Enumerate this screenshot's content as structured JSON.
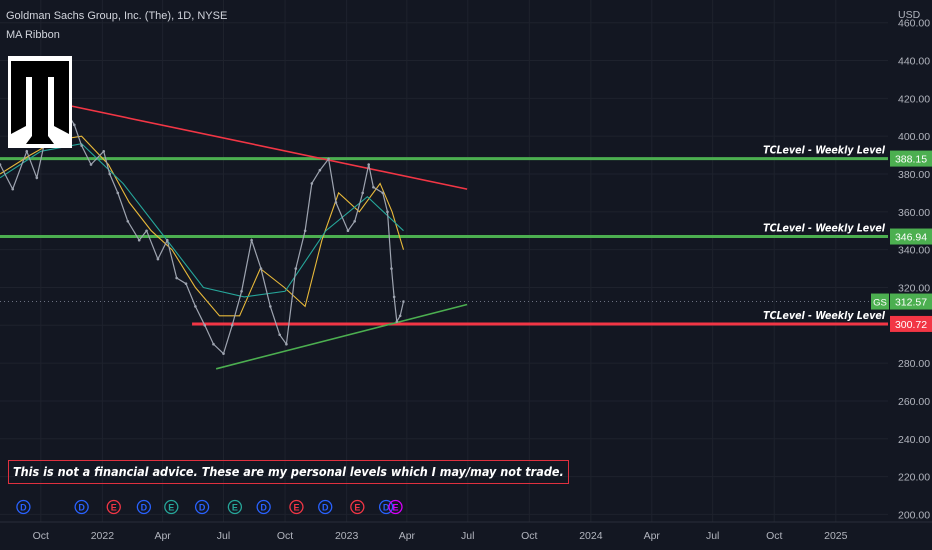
{
  "header": {
    "title": "Goldman Sachs Group, Inc. (The), 1D, NYSE",
    "indicator": "MA Ribbon"
  },
  "disclaimer": "This is not a financial advice. These are my personal levels which I may/may not trade.",
  "chart_data": {
    "type": "line",
    "symbol": "GS",
    "currency": "USD",
    "ylim": [
      196,
      472
    ],
    "y_ticks": [
      "460.00",
      "440.00",
      "420.00",
      "400.00",
      "380.00",
      "360.00",
      "340.00",
      "320.00",
      "300.00",
      "280.00",
      "260.00",
      "240.00",
      "220.00",
      "200.00"
    ],
    "y_tick_values": [
      460,
      440,
      420,
      400,
      380,
      360,
      340,
      320,
      300,
      280,
      260,
      240,
      220,
      200
    ],
    "x_ticks": [
      "Oct",
      "2022",
      "Apr",
      "Jul",
      "Oct",
      "2023",
      "Apr",
      "Jul",
      "Oct",
      "2024",
      "Apr",
      "Jul",
      "Oct",
      "2025"
    ],
    "x_tick_dates": [
      "2021-10-01",
      "2022-01-01",
      "2022-04-01",
      "2022-07-01",
      "2022-10-01",
      "2023-01-01",
      "2023-04-01",
      "2023-07-01",
      "2023-10-01",
      "2024-01-01",
      "2024-04-01",
      "2024-07-01",
      "2024-10-01",
      "2025-01-01"
    ],
    "xlim": [
      "2021-08-01",
      "2025-03-20"
    ],
    "series": [
      {
        "color": "#9ea4b0",
        "x": [
          "2021-08-01",
          "2021-08-20",
          "2021-09-10",
          "2021-09-25",
          "2021-10-10",
          "2021-10-25",
          "2021-11-05",
          "2021-11-20",
          "2021-12-01",
          "2021-12-15",
          "2022-01-03",
          "2022-01-12",
          "2022-01-24",
          "2022-02-08",
          "2022-02-25",
          "2022-03-08",
          "2022-03-25",
          "2022-04-08",
          "2022-04-22",
          "2022-05-06",
          "2022-05-20",
          "2022-06-03",
          "2022-06-16",
          "2022-07-01",
          "2022-07-14",
          "2022-07-28",
          "2022-08-12",
          "2022-08-26",
          "2022-09-09",
          "2022-09-23",
          "2022-10-03",
          "2022-10-17",
          "2022-10-31",
          "2022-11-10",
          "2022-11-22",
          "2022-12-05",
          "2022-12-16",
          "2023-01-03",
          "2023-01-13",
          "2023-01-25",
          "2023-02-03",
          "2023-02-10",
          "2023-02-24",
          "2023-03-03",
          "2023-03-09",
          "2023-03-13",
          "2023-03-17",
          "2023-03-22",
          "2023-03-27"
        ],
        "values": [
          385,
          372,
          392,
          378,
          402,
          398,
          415,
          406,
          395,
          385,
          392,
          380,
          370,
          355,
          345,
          350,
          335,
          345,
          325,
          322,
          310,
          300,
          290,
          285,
          300,
          318,
          345,
          330,
          310,
          295,
          290,
          330,
          350,
          375,
          382,
          388,
          365,
          350,
          355,
          370,
          385,
          373,
          370,
          360,
          330,
          315,
          302,
          305,
          312.57
        ]
      }
    ],
    "moving_averages": [
      {
        "color": "#e8b93a",
        "x": [
          "2021-08-01",
          "2021-09-15",
          "2021-10-25",
          "2021-12-01",
          "2022-01-10",
          "2022-02-10",
          "2022-03-15",
          "2022-04-15",
          "2022-05-20",
          "2022-06-25",
          "2022-07-25",
          "2022-08-25",
          "2022-09-30",
          "2022-10-31",
          "2022-11-25",
          "2022-12-20",
          "2023-01-20",
          "2023-02-20",
          "2023-03-10",
          "2023-03-27"
        ],
        "values": [
          380,
          390,
          398,
          400,
          385,
          365,
          350,
          340,
          320,
          305,
          305,
          330,
          320,
          310,
          345,
          370,
          360,
          375,
          360,
          340
        ]
      },
      {
        "color": "#26a69a",
        "x": [
          "2021-08-01",
          "2021-10-01",
          "2021-12-01",
          "2022-02-01",
          "2022-04-01",
          "2022-06-01",
          "2022-08-01",
          "2022-10-01",
          "2022-12-01",
          "2023-02-01",
          "2023-03-27"
        ],
        "values": [
          378,
          392,
          396,
          375,
          348,
          320,
          315,
          318,
          350,
          368,
          350
        ]
      }
    ],
    "levels": [
      {
        "label": "TCLevel - Weekly Level",
        "value": 388.15,
        "value_text": "388.15",
        "color": "#4caf50"
      },
      {
        "label": "TCLevel - Weekly Level",
        "value": 346.94,
        "value_text": "346.94",
        "color": "#4caf50"
      },
      {
        "label": "TCLevel - Weekly Level",
        "value": 300.72,
        "value_text": "300.72",
        "color": "#f23645"
      }
    ],
    "trendlines": [
      {
        "color": "#f23645",
        "from": {
          "x": "2021-11-01",
          "y": 417
        },
        "to": {
          "x": "2023-06-30",
          "y": 372
        }
      },
      {
        "color": "#4caf50",
        "from": {
          "x": "2022-06-20",
          "y": 277
        },
        "to": {
          "x": "2023-06-30",
          "y": 311
        }
      }
    ],
    "last_price": {
      "symbol": "GS",
      "value": 312.57,
      "value_text": "312.57",
      "color": "#4caf50"
    },
    "event_markers": [
      {
        "text": "E",
        "color": "#26a69a"
      },
      {
        "text": "D",
        "color": "#2962ff"
      },
      {
        "text": "D",
        "color": "#2962ff"
      },
      {
        "text": "E",
        "color": "#f23645"
      },
      {
        "text": "D",
        "color": "#2962ff"
      },
      {
        "text": "E",
        "color": "#26a69a"
      },
      {
        "text": "D",
        "color": "#2962ff"
      },
      {
        "text": "E",
        "color": "#26a69a"
      },
      {
        "text": "D",
        "color": "#2962ff"
      },
      {
        "text": "E",
        "color": "#f23645"
      },
      {
        "text": "D",
        "color": "#2962ff"
      },
      {
        "text": "E",
        "color": "#f23645"
      },
      {
        "text": "D",
        "color": "#2962ff"
      },
      {
        "text": "E",
        "color": "#d500f9"
      }
    ],
    "event_dates": [
      "2021-07-20",
      "2021-09-05",
      "2021-12-01",
      "2022-01-18",
      "2022-03-04",
      "2022-04-14",
      "2022-05-30",
      "2022-07-18",
      "2022-08-30",
      "2022-10-18",
      "2022-11-30",
      "2023-01-17",
      "2023-03-01",
      "2023-03-15"
    ]
  }
}
